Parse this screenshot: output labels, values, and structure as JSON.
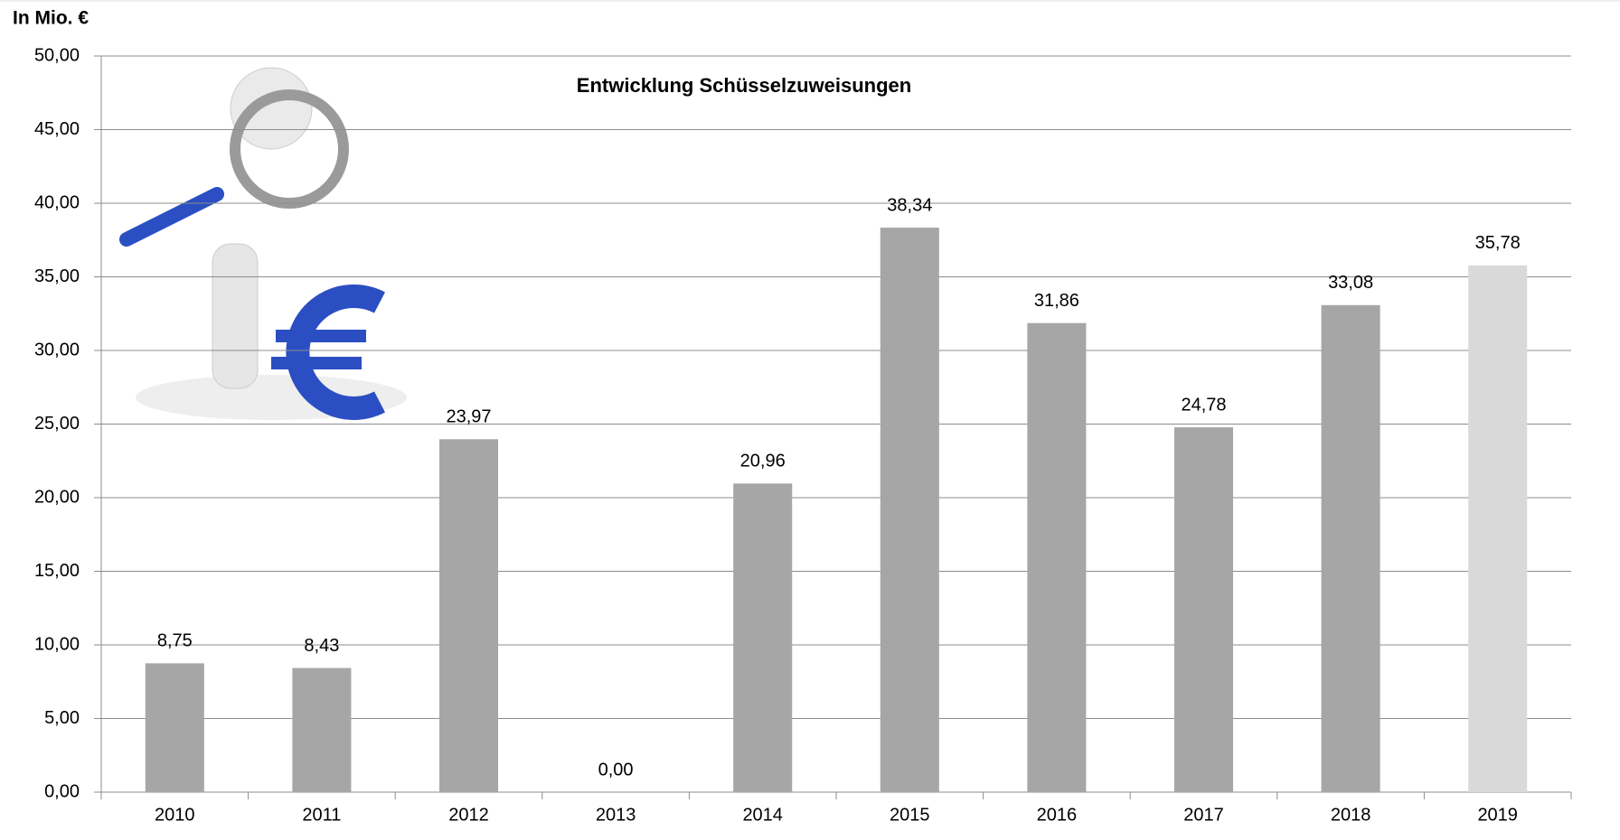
{
  "chart_data": {
    "type": "bar",
    "title": "Entwicklung Schüsselzuweisungen",
    "y_label": "In Mio. €",
    "categories": [
      "2010",
      "2011",
      "2012",
      "2013",
      "2014",
      "2015",
      "2016",
      "2017",
      "2018",
      "2019"
    ],
    "values": [
      8.75,
      8.43,
      23.97,
      0,
      20.96,
      38.34,
      31.86,
      24.78,
      33.08,
      35.78
    ],
    "value_labels": [
      "8,75",
      "8,43",
      "23,97",
      "0,00",
      "20,96",
      "38,34",
      "31,86",
      "24,78",
      "33,08",
      "35,78"
    ],
    "colors": [
      "#a6a6a6",
      "#a6a6a6",
      "#a6a6a6",
      "#a6a6a6",
      "#a6a6a6",
      "#a6a6a6",
      "#a6a6a6",
      "#a6a6a6",
      "#a6a6a6",
      "#d9d9d9"
    ],
    "ylim": [
      0,
      50
    ],
    "yticks": [
      {
        "value": 0,
        "label": "0,00"
      },
      {
        "value": 5,
        "label": "5,00"
      },
      {
        "value": 10,
        "label": "10,00"
      },
      {
        "value": 15,
        "label": "15,00"
      },
      {
        "value": 20,
        "label": "20,00"
      },
      {
        "value": 25,
        "label": "25,00"
      },
      {
        "value": 30,
        "label": "30,00"
      },
      {
        "value": 35,
        "label": "35,00"
      },
      {
        "value": 40,
        "label": "40,00"
      },
      {
        "value": 45,
        "label": "45,00"
      },
      {
        "value": 50,
        "label": "50,00"
      }
    ],
    "grid": true
  }
}
